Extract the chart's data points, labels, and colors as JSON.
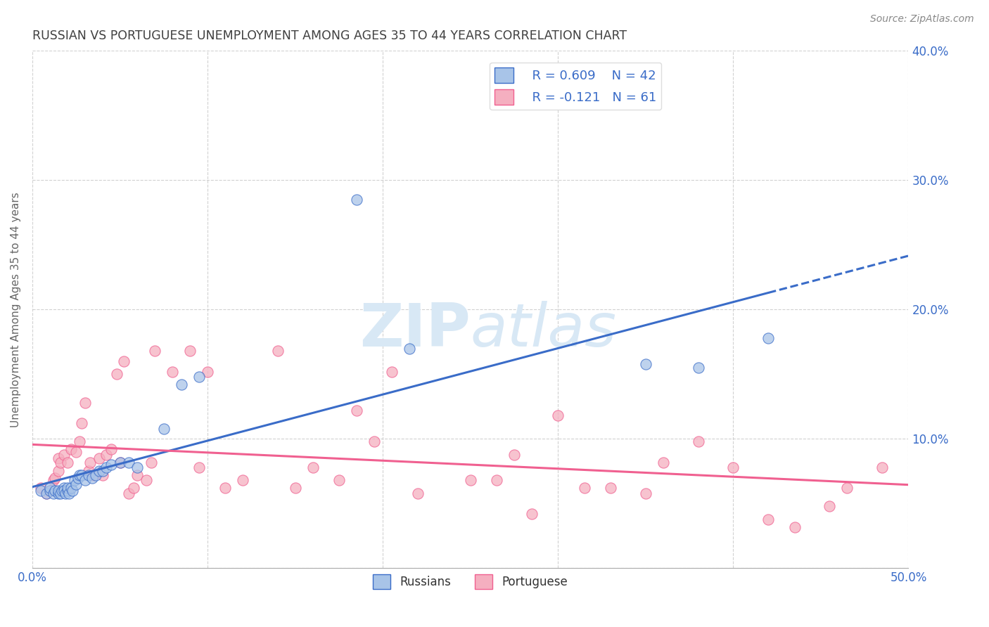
{
  "title": "RUSSIAN VS PORTUGUESE UNEMPLOYMENT AMONG AGES 35 TO 44 YEARS CORRELATION CHART",
  "source": "Source: ZipAtlas.com",
  "ylabel": "Unemployment Among Ages 35 to 44 years",
  "xlim": [
    0.0,
    0.5
  ],
  "ylim": [
    0.0,
    0.4
  ],
  "yticks": [
    0.0,
    0.1,
    0.2,
    0.3,
    0.4
  ],
  "ytick_labels_right": [
    "",
    "10.0%",
    "20.0%",
    "30.0%",
    "40.0%"
  ],
  "xticks": [
    0.0,
    0.1,
    0.2,
    0.3,
    0.4,
    0.5
  ],
  "russian_R": 0.609,
  "russian_N": 42,
  "portuguese_R": -0.121,
  "portuguese_N": 61,
  "russian_color": "#a8c4e8",
  "portuguese_color": "#f5afc0",
  "russian_line_color": "#3a6cc8",
  "portuguese_line_color": "#f06090",
  "background_color": "#ffffff",
  "grid_color": "#cccccc",
  "title_color": "#404040",
  "legend_text_color": "#3a6cc8",
  "watermark_color": "#d8e8f5",
  "russian_x": [
    0.005,
    0.008,
    0.01,
    0.01,
    0.012,
    0.013,
    0.015,
    0.015,
    0.016,
    0.017,
    0.018,
    0.018,
    0.019,
    0.02,
    0.02,
    0.021,
    0.022,
    0.023,
    0.024,
    0.025,
    0.026,
    0.027,
    0.028,
    0.03,
    0.032,
    0.034,
    0.036,
    0.038,
    0.04,
    0.042,
    0.045,
    0.05,
    0.055,
    0.06,
    0.075,
    0.085,
    0.095,
    0.185,
    0.215,
    0.35,
    0.38,
    0.42
  ],
  "russian_y": [
    0.06,
    0.058,
    0.06,
    0.062,
    0.058,
    0.06,
    0.058,
    0.06,
    0.058,
    0.06,
    0.062,
    0.06,
    0.058,
    0.06,
    0.062,
    0.058,
    0.062,
    0.06,
    0.068,
    0.065,
    0.07,
    0.072,
    0.072,
    0.068,
    0.072,
    0.07,
    0.072,
    0.075,
    0.075,
    0.078,
    0.08,
    0.082,
    0.082,
    0.078,
    0.108,
    0.142,
    0.148,
    0.285,
    0.17,
    0.158,
    0.155,
    0.178
  ],
  "portuguese_x": [
    0.005,
    0.008,
    0.01,
    0.012,
    0.013,
    0.015,
    0.015,
    0.016,
    0.018,
    0.02,
    0.022,
    0.025,
    0.027,
    0.028,
    0.03,
    0.032,
    0.033,
    0.035,
    0.038,
    0.04,
    0.042,
    0.045,
    0.048,
    0.05,
    0.052,
    0.055,
    0.058,
    0.06,
    0.065,
    0.068,
    0.07,
    0.08,
    0.09,
    0.095,
    0.1,
    0.11,
    0.12,
    0.14,
    0.15,
    0.16,
    0.175,
    0.185,
    0.195,
    0.205,
    0.22,
    0.25,
    0.265,
    0.275,
    0.285,
    0.3,
    0.315,
    0.33,
    0.35,
    0.36,
    0.38,
    0.4,
    0.42,
    0.435,
    0.455,
    0.465,
    0.485
  ],
  "portuguese_y": [
    0.062,
    0.058,
    0.06,
    0.068,
    0.07,
    0.075,
    0.085,
    0.082,
    0.088,
    0.082,
    0.092,
    0.09,
    0.098,
    0.112,
    0.128,
    0.075,
    0.082,
    0.072,
    0.085,
    0.072,
    0.088,
    0.092,
    0.15,
    0.082,
    0.16,
    0.058,
    0.062,
    0.072,
    0.068,
    0.082,
    0.168,
    0.152,
    0.168,
    0.078,
    0.152,
    0.062,
    0.068,
    0.168,
    0.062,
    0.078,
    0.068,
    0.122,
    0.098,
    0.152,
    0.058,
    0.068,
    0.068,
    0.088,
    0.042,
    0.118,
    0.062,
    0.062,
    0.058,
    0.082,
    0.098,
    0.078,
    0.038,
    0.032,
    0.048,
    0.062,
    0.078
  ]
}
